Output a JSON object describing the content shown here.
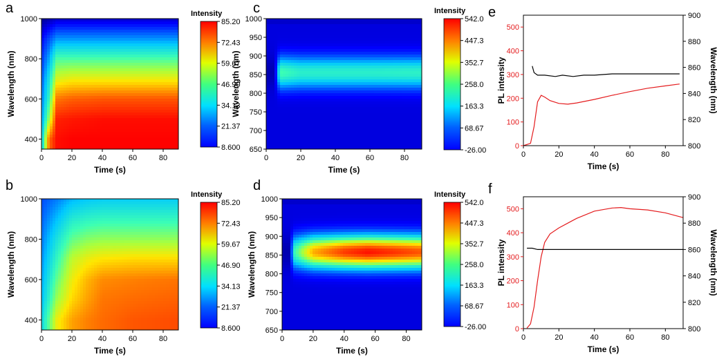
{
  "panels": {
    "a": {
      "letter": "a",
      "type": "heatmap",
      "xlabel": "Time (s)",
      "ylabel": "Wavelength (nm)",
      "xlim": [
        0,
        90
      ],
      "ylim": [
        350,
        1000
      ],
      "xticks": [
        "0",
        "20",
        "40",
        "60",
        "80"
      ],
      "yticks": [
        "400",
        "600",
        "800",
        "1000"
      ],
      "colorbar": {
        "title": "Intensity",
        "ticks": [
          "85.20",
          "72.43",
          "59.67",
          "46.90",
          "34.13",
          "21.37",
          "8.600"
        ]
      }
    },
    "b": {
      "letter": "b",
      "type": "heatmap",
      "xlabel": "Time (s)",
      "ylabel": "Wavelength (nm)",
      "xlim": [
        0,
        90
      ],
      "ylim": [
        350,
        1000
      ],
      "xticks": [
        "0",
        "20",
        "40",
        "60",
        "80"
      ],
      "yticks": [
        "400",
        "600",
        "800",
        "1000"
      ],
      "colorbar": {
        "title": "Intensity",
        "ticks": [
          "85.20",
          "72.43",
          "59.67",
          "46.90",
          "34.13",
          "21.37",
          "8.600"
        ]
      }
    },
    "c": {
      "letter": "c",
      "type": "heatmap",
      "xlabel": "Time (s)",
      "ylabel": "Wavelength (nm)",
      "xlim": [
        0,
        90
      ],
      "ylim": [
        650,
        1000
      ],
      "xticks": [
        "0",
        "20",
        "40",
        "60",
        "80"
      ],
      "yticks": [
        "650",
        "700",
        "750",
        "800",
        "850",
        "900",
        "950",
        "1000"
      ],
      "colorbar": {
        "title": "Intensity",
        "ticks": [
          "542.0",
          "447.3",
          "352.7",
          "258.0",
          "163.3",
          "68.67",
          "-26.00"
        ]
      }
    },
    "d": {
      "letter": "d",
      "type": "heatmap",
      "xlabel": "Time (s)",
      "ylabel": "Wavelength (nm)",
      "xlim": [
        0,
        90
      ],
      "ylim": [
        650,
        1000
      ],
      "xticks": [
        "0",
        "20",
        "40",
        "60",
        "80"
      ],
      "yticks": [
        "650",
        "700",
        "750",
        "800",
        "850",
        "900",
        "950",
        "1000"
      ],
      "colorbar": {
        "title": "Intensity",
        "ticks": [
          "542.0",
          "447.3",
          "352.7",
          "258.0",
          "163.3",
          "68.67",
          "-26.00"
        ]
      }
    },
    "e": {
      "letter": "e",
      "type": "line",
      "xlabel": "Time (s)",
      "ylabel": "PL intensity",
      "y2label": "Wavelength (nm)",
      "xlim": [
        0,
        90
      ],
      "ylim": [
        0,
        550
      ],
      "y2lim": [
        800,
        900
      ],
      "xticks": [
        "0",
        "20",
        "40",
        "60",
        "80"
      ],
      "yticks": [
        "0",
        "100",
        "200",
        "300",
        "400",
        "500"
      ],
      "y2ticks": [
        "800",
        "820",
        "840",
        "860",
        "880",
        "900"
      ]
    },
    "f": {
      "letter": "f",
      "type": "line",
      "xlabel": "Time (s)",
      "ylabel": "PL intensity",
      "y2label": "Wavelength (nm)",
      "xlim": [
        0,
        90
      ],
      "ylim": [
        0,
        550
      ],
      "y2lim": [
        800,
        900
      ],
      "xticks": [
        "0",
        "20",
        "40",
        "60",
        "80"
      ],
      "yticks": [
        "0",
        "100",
        "200",
        "300",
        "400",
        "500"
      ],
      "y2ticks": [
        "800",
        "820",
        "840",
        "860",
        "880",
        "900"
      ]
    }
  },
  "chart_data": [
    {
      "panel": "a",
      "type": "heatmap",
      "xlabel": "Time (s)",
      "ylabel": "Wavelength (nm)",
      "xlim": [
        0,
        90
      ],
      "ylim": [
        350,
        1000
      ],
      "zlim": [
        8.6,
        85.2
      ],
      "x": [
        0,
        5,
        10,
        20,
        40,
        60,
        90
      ],
      "y": [
        400,
        500,
        600,
        700,
        800,
        900,
        1000
      ],
      "z": [
        [
          35,
          75,
          84,
          85,
          85,
          85,
          85
        ],
        [
          30,
          55,
          82,
          83,
          84,
          84,
          84
        ],
        [
          28,
          45,
          74,
          76,
          77,
          77,
          77
        ],
        [
          25,
          40,
          60,
          62,
          62,
          62,
          62
        ],
        [
          22,
          32,
          48,
          48,
          48,
          48,
          48
        ],
        [
          18,
          24,
          30,
          30,
          30,
          30,
          30
        ],
        [
          10,
          12,
          14,
          14,
          14,
          14,
          14
        ]
      ]
    },
    {
      "panel": "b",
      "type": "heatmap",
      "xlabel": "Time (s)",
      "ylabel": "Wavelength (nm)",
      "xlim": [
        0,
        90
      ],
      "ylim": [
        350,
        1000
      ],
      "zlim": [
        8.6,
        85.2
      ],
      "x": [
        0,
        10,
        20,
        30,
        40,
        60,
        90
      ],
      "y": [
        400,
        500,
        600,
        700,
        800,
        900,
        1000
      ],
      "z": [
        [
          38,
          62,
          70,
          73,
          75,
          77,
          78
        ],
        [
          34,
          55,
          65,
          70,
          74,
          75,
          76
        ],
        [
          32,
          50,
          62,
          68,
          72,
          73,
          74
        ],
        [
          30,
          45,
          58,
          62,
          64,
          65,
          65
        ],
        [
          28,
          40,
          50,
          53,
          54,
          54,
          54
        ],
        [
          26,
          34,
          42,
          44,
          45,
          45,
          45
        ],
        [
          24,
          28,
          33,
          35,
          36,
          36,
          36
        ]
      ]
    },
    {
      "panel": "c",
      "type": "heatmap",
      "xlabel": "Time (s)",
      "ylabel": "Wavelength (nm)",
      "xlim": [
        0,
        90
      ],
      "ylim": [
        650,
        1000
      ],
      "zlim": [
        -26.0,
        542.0
      ],
      "peak_wavelength": 855,
      "x": [
        5,
        8,
        20,
        40,
        60,
        90
      ],
      "peak_intensity": [
        0,
        260,
        230,
        230,
        230,
        235
      ]
    },
    {
      "panel": "d",
      "type": "heatmap",
      "xlabel": "Time (s)",
      "ylabel": "Wavelength (nm)",
      "xlim": [
        0,
        90
      ],
      "ylim": [
        650,
        1000
      ],
      "zlim": [
        -26.0,
        542.0
      ],
      "peak_wavelength": 858,
      "x": [
        5,
        8,
        20,
        40,
        55,
        70,
        90
      ],
      "peak_intensity": [
        0,
        250,
        420,
        500,
        530,
        510,
        480
      ]
    },
    {
      "panel": "e",
      "type": "line",
      "xlabel": "Time (s)",
      "ylabel": "PL intensity",
      "y2label": "Wavelength (nm)",
      "xlim": [
        0,
        90
      ],
      "ylim": [
        0,
        550
      ],
      "y2lim": [
        800,
        900
      ],
      "series": [
        {
          "axis": "left",
          "color": "#e41a1c",
          "x": [
            0,
            4,
            6,
            8,
            10,
            12,
            15,
            20,
            25,
            30,
            40,
            50,
            60,
            70,
            80,
            88
          ],
          "y": [
            0,
            10,
            80,
            185,
            212,
            205,
            190,
            178,
            175,
            180,
            195,
            212,
            228,
            242,
            252,
            260
          ]
        },
        {
          "axis": "right",
          "color": "#000000",
          "x": [
            5,
            6,
            8,
            12,
            18,
            22,
            28,
            34,
            40,
            50,
            60,
            70,
            80,
            88
          ],
          "y": [
            861,
            856,
            854,
            854,
            853,
            854,
            853,
            854,
            854,
            855,
            855,
            855,
            855,
            855
          ]
        }
      ]
    },
    {
      "panel": "f",
      "type": "line",
      "xlabel": "Time (s)",
      "ylabel": "PL intensity",
      "y2label": "Wavelength (nm)",
      "xlim": [
        0,
        90
      ],
      "ylim": [
        0,
        550
      ],
      "y2lim": [
        800,
        900
      ],
      "series": [
        {
          "axis": "left",
          "color": "#e41a1c",
          "x": [
            2,
            4,
            6,
            8,
            10,
            12,
            15,
            20,
            25,
            30,
            40,
            50,
            55,
            60,
            70,
            80,
            90
          ],
          "y": [
            2,
            20,
            90,
            200,
            300,
            360,
            395,
            420,
            440,
            460,
            490,
            503,
            505,
            500,
            495,
            483,
            463
          ]
        },
        {
          "axis": "right",
          "color": "#000000",
          "x": [
            2,
            5,
            8,
            10,
            20,
            40,
            60,
            90
          ],
          "y": [
            861,
            861,
            860,
            860,
            860,
            860,
            860,
            860
          ]
        }
      ]
    }
  ],
  "colors": {
    "jet": [
      "#00007f",
      "#0000ff",
      "#0080ff",
      "#00ffff",
      "#80ff80",
      "#ffff00",
      "#ff8000",
      "#ff0000",
      "#7f0000"
    ],
    "pl_line": "#e41a1c",
    "wavelength_line": "#000000"
  }
}
